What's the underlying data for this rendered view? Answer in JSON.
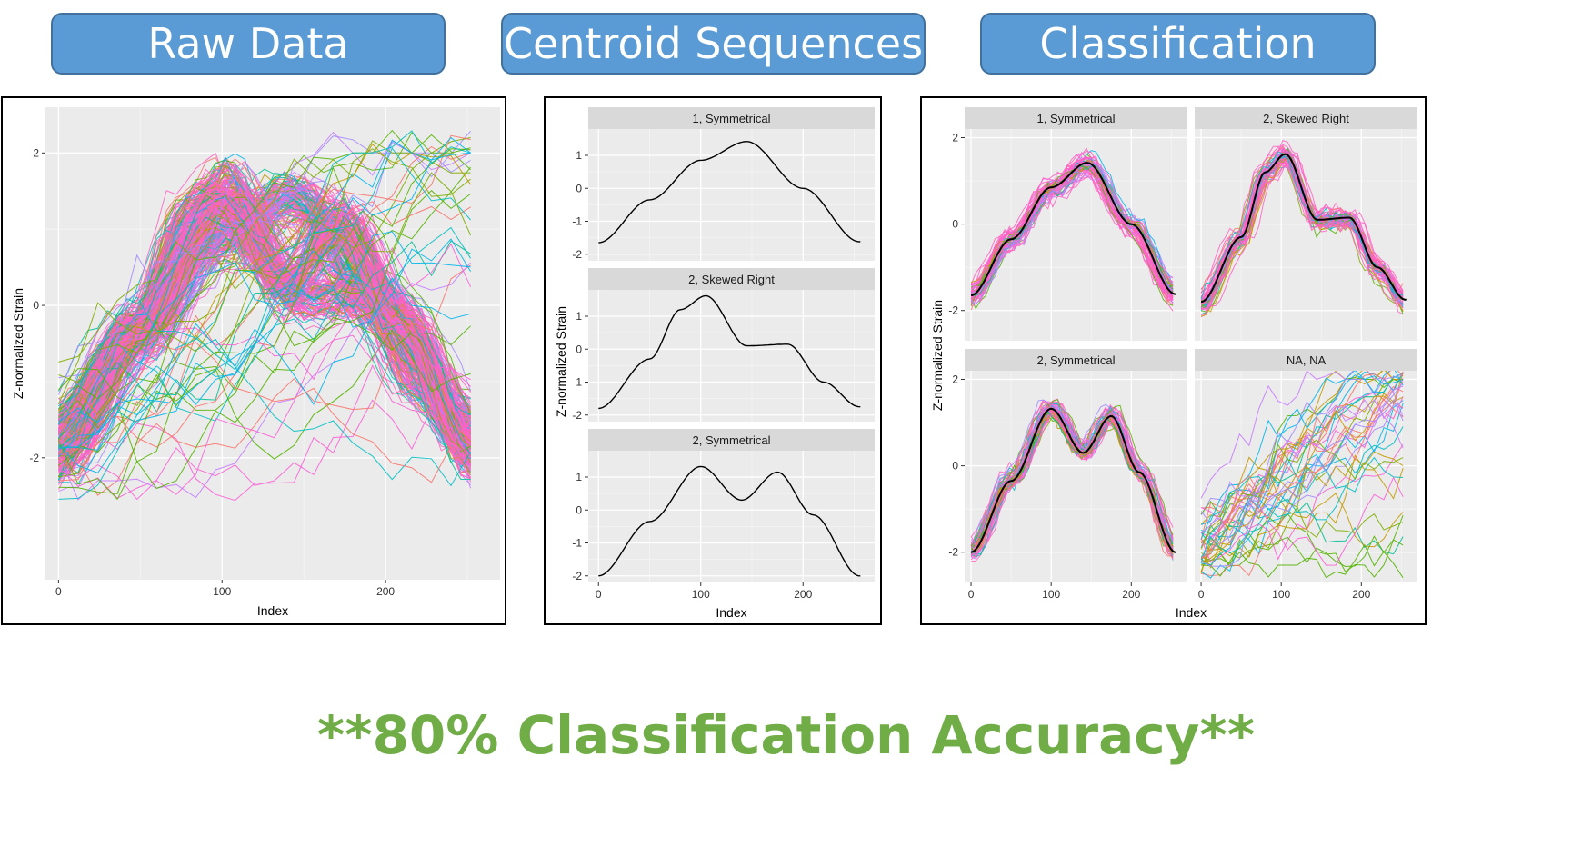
{
  "headers": {
    "raw": "Raw Data",
    "centroid": "Centroid Sequences",
    "classification": "Classification"
  },
  "accuracy_text": "**80% Classification Accuracy**",
  "colors": {
    "header_fill": "#5b9bd5",
    "accuracy_text": "#70ad47",
    "panel_bg": "#ebebeb",
    "strip_bg": "#d9d9d9",
    "pink": "#ff61c3"
  },
  "chart_data": [
    {
      "type": "line",
      "name": "raw-data",
      "xlabel": "Index",
      "ylabel": "Z-normalized Strain",
      "xlim": [
        -8,
        270
      ],
      "ylim": [
        -3.6,
        2.6
      ],
      "xticks": [
        0,
        100,
        200
      ],
      "yticks": [
        -2,
        0,
        2
      ],
      "grid": true,
      "series_count": "many (hundreds, multi-colored)"
    },
    {
      "type": "line",
      "name": "centroid-sequences",
      "xlabel": "Index",
      "ylabel": "Z-normalized Strain",
      "xlim": [
        -10,
        270
      ],
      "ylim": [
        -2.2,
        1.8
      ],
      "xticks": [
        0,
        100,
        200
      ],
      "yticks": [
        -2,
        -1,
        0,
        1
      ],
      "grid": true,
      "facets": [
        {
          "label": "1, Symmetrical",
          "x": [
            0,
            50,
            100,
            145,
            200,
            255
          ],
          "y": [
            -1.65,
            -0.35,
            0.85,
            1.42,
            0.0,
            -1.62
          ]
        },
        {
          "label": "2, Skewed Right",
          "x": [
            0,
            50,
            80,
            105,
            145,
            185,
            220,
            255
          ],
          "y": [
            -1.8,
            -0.3,
            1.2,
            1.62,
            0.1,
            0.15,
            -1.0,
            -1.75
          ]
        },
        {
          "label": "2, Symmetrical",
          "x": [
            0,
            50,
            100,
            140,
            175,
            210,
            255
          ],
          "y": [
            -2.0,
            -0.35,
            1.32,
            0.3,
            1.15,
            -0.15,
            -2.0
          ]
        }
      ]
    },
    {
      "type": "line",
      "name": "classification",
      "xlabel": "Index",
      "ylabel": "Z-normalized Strain",
      "xlim": [
        -8,
        270
      ],
      "ylim": [
        -2.7,
        2.2
      ],
      "xticks": [
        0,
        100,
        200
      ],
      "yticks": [
        -2,
        0,
        2
      ],
      "grid": true,
      "facets": [
        {
          "label": "1, Symmetrical",
          "x": [
            0,
            50,
            100,
            145,
            200,
            255
          ],
          "y": [
            -1.65,
            -0.35,
            0.85,
            1.42,
            0.0,
            -1.62
          ]
        },
        {
          "label": "2, Skewed Right",
          "x": [
            0,
            50,
            80,
            105,
            145,
            185,
            220,
            255
          ],
          "y": [
            -1.8,
            -0.3,
            1.2,
            1.62,
            0.1,
            0.15,
            -1.0,
            -1.75
          ]
        },
        {
          "label": "2, Symmetrical",
          "x": [
            0,
            50,
            100,
            140,
            175,
            210,
            255
          ],
          "y": [
            -2.0,
            -0.35,
            1.32,
            0.3,
            1.15,
            -0.15,
            -2.0
          ]
        },
        {
          "label": "NA, NA",
          "x": [],
          "y": []
        }
      ]
    }
  ]
}
